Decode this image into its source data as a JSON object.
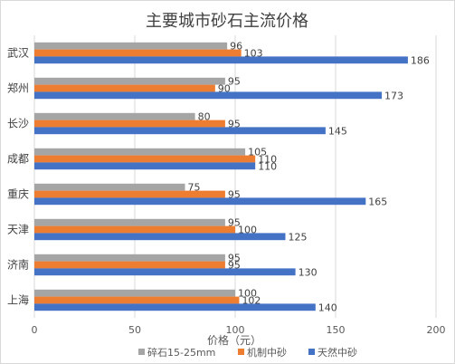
{
  "chart_data": {
    "type": "bar",
    "orientation": "horizontal",
    "title": "主要城市砂石主流价格",
    "xlabel": "价格（元）",
    "ylabel": "",
    "xlim": [
      0,
      200
    ],
    "xticks": [
      0,
      50,
      100,
      150,
      200
    ],
    "grid": true,
    "legend_position": "bottom",
    "categories": [
      "武汉",
      "郑州",
      "长沙",
      "成都",
      "重庆",
      "天津",
      "济南",
      "上海"
    ],
    "series": [
      {
        "name": "碎石15-25mm",
        "color": "#a5a5a5",
        "values": [
          96,
          95,
          80,
          105,
          75,
          95,
          95,
          100
        ]
      },
      {
        "name": "机制中砂",
        "color": "#ed7d31",
        "values": [
          103,
          90,
          95,
          110,
          95,
          100,
          95,
          102
        ]
      },
      {
        "name": "天然中砂",
        "color": "#4472c4",
        "values": [
          186,
          173,
          145,
          110,
          165,
          125,
          130,
          140
        ]
      }
    ]
  }
}
